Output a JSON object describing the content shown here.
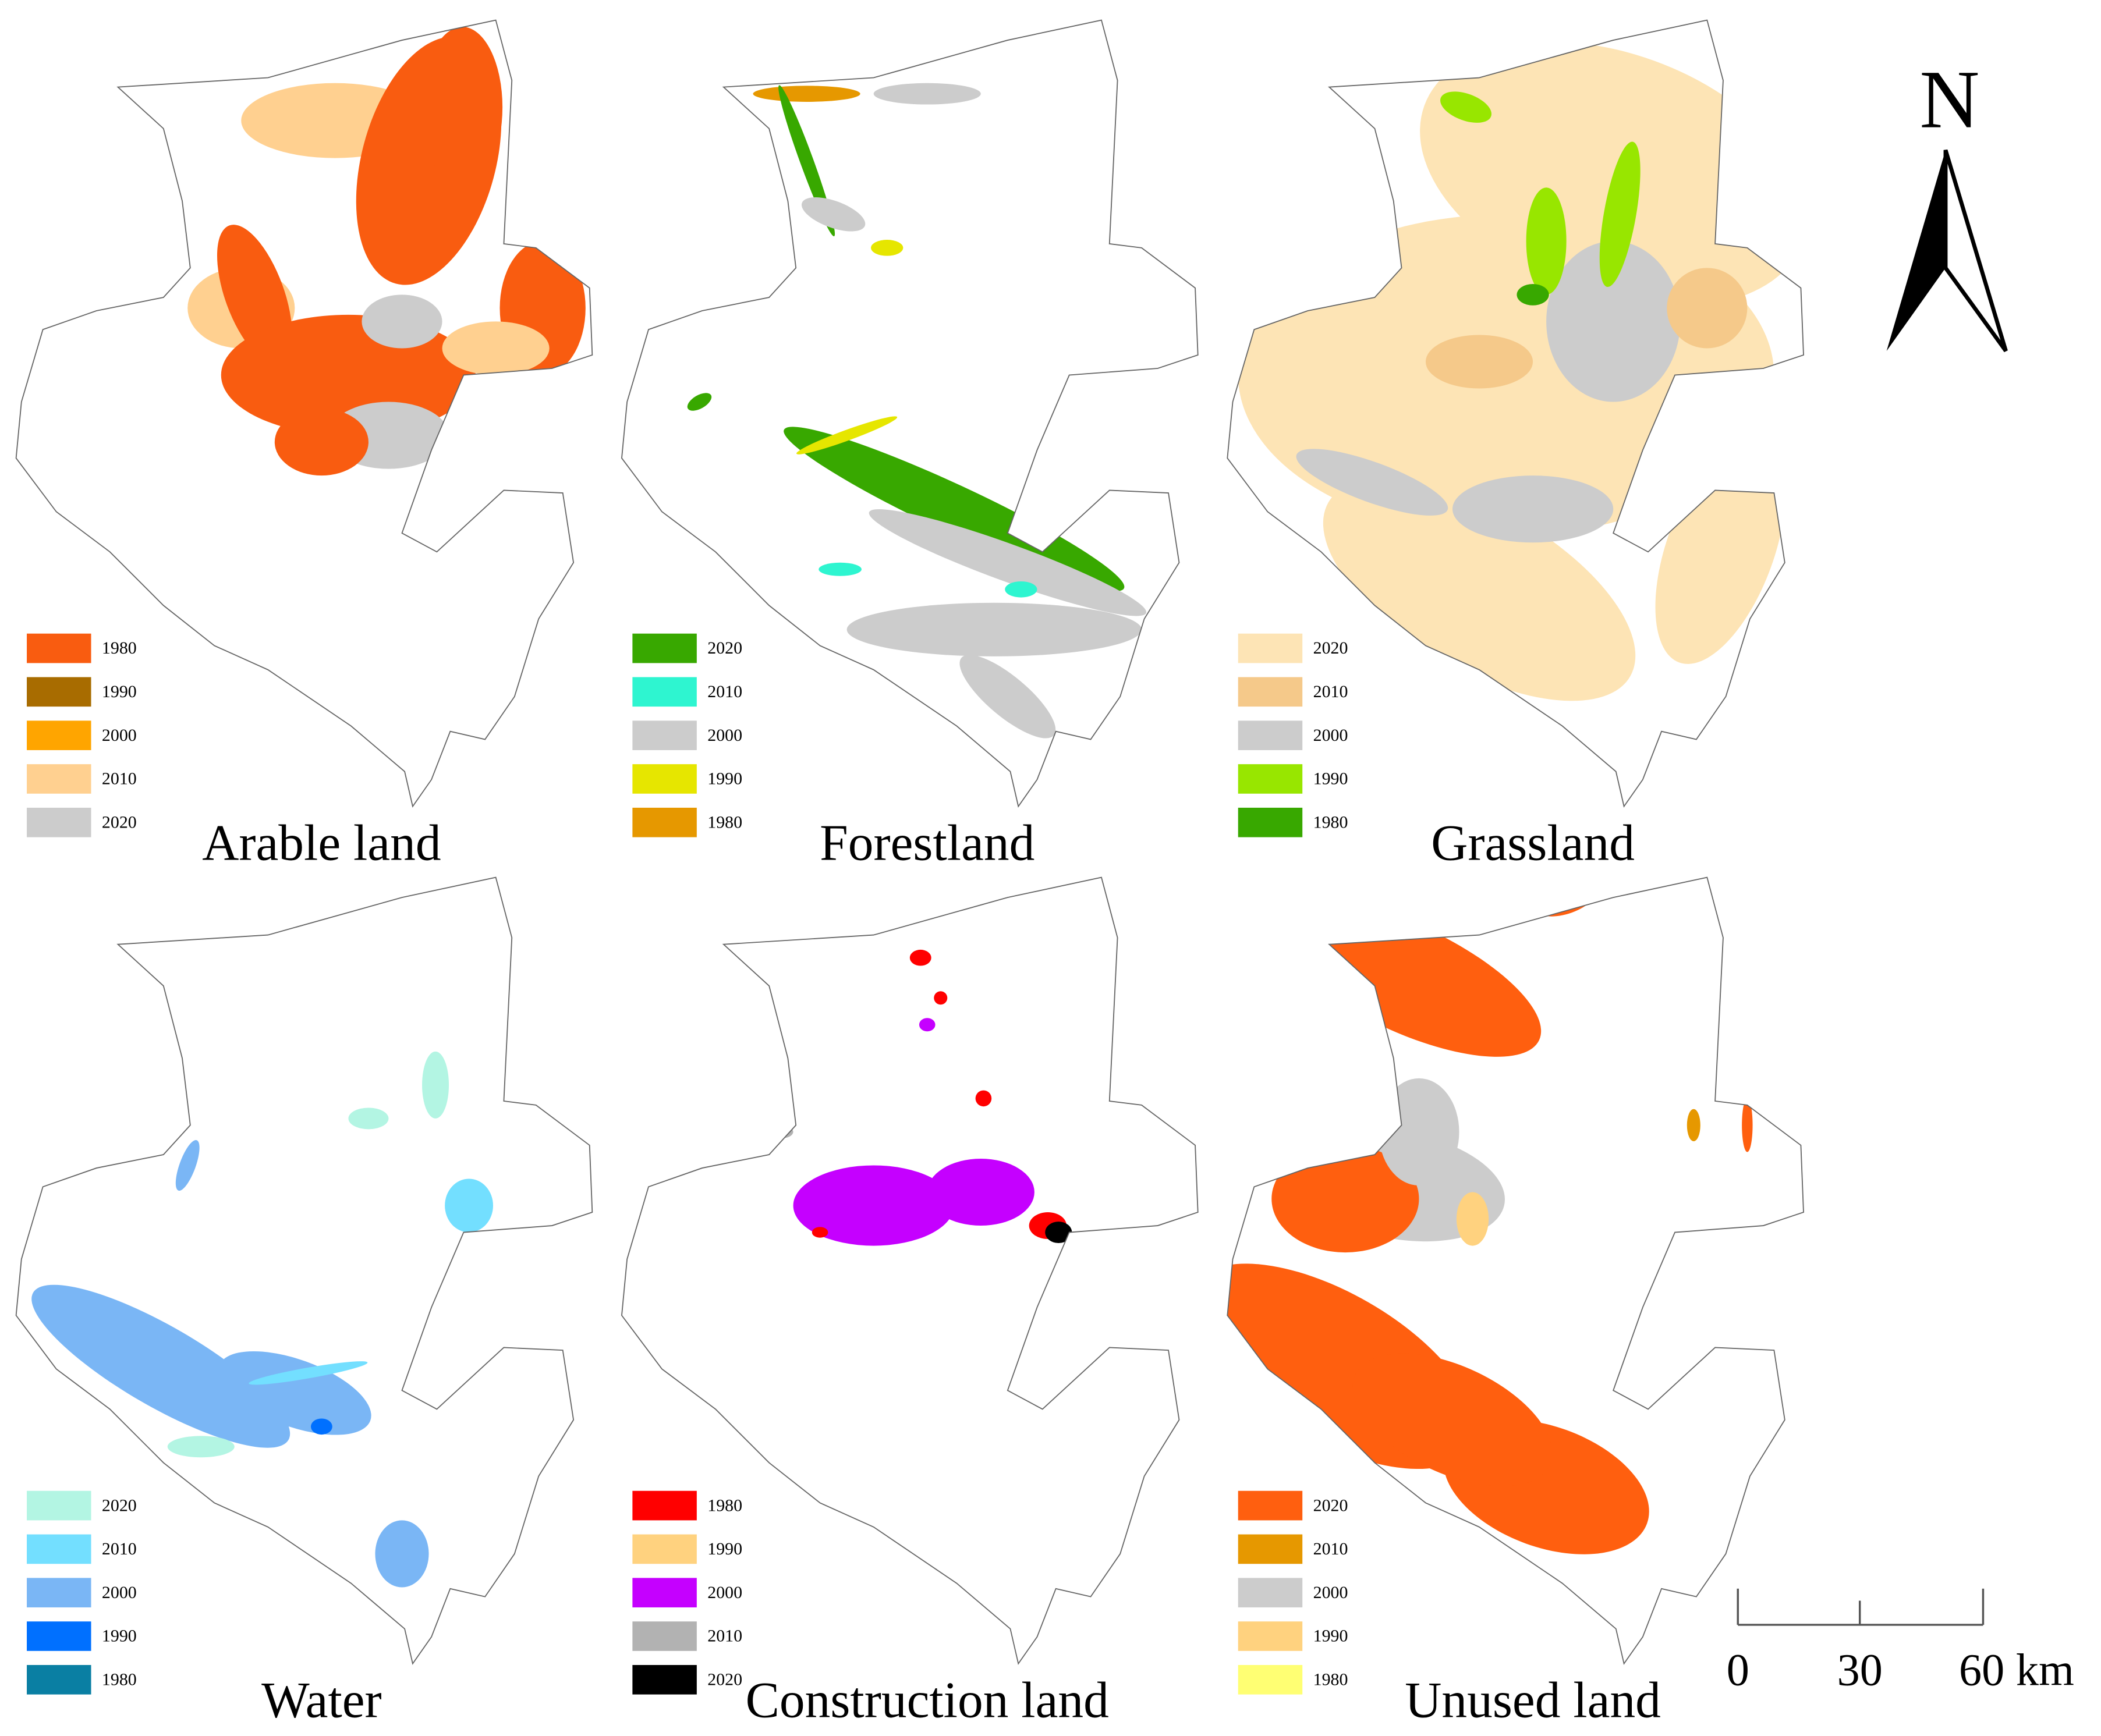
{
  "panels": [
    {
      "title": "Arable land",
      "legend": [
        {
          "label": "1980",
          "color": "#f95c10"
        },
        {
          "label": "1990",
          "color": "#a86c00"
        },
        {
          "label": "2000",
          "color": "#ffa500"
        },
        {
          "label": "2010",
          "color": "#ffd090"
        },
        {
          "label": "2020",
          "color": "#cccccc"
        }
      ]
    },
    {
      "title": "Forestland",
      "legend": [
        {
          "label": "2020",
          "color": "#38a800"
        },
        {
          "label": "2010",
          "color": "#2ef5d0"
        },
        {
          "label": "2000",
          "color": "#cccccc"
        },
        {
          "label": "1990",
          "color": "#e6e600"
        },
        {
          "label": "1980",
          "color": "#e69800"
        }
      ]
    },
    {
      "title": "Grassland",
      "legend": [
        {
          "label": "2020",
          "color": "#fde4b5"
        },
        {
          "label": "2010",
          "color": "#f5c98a"
        },
        {
          "label": "2000",
          "color": "#cccccc"
        },
        {
          "label": "1990",
          "color": "#98e600"
        },
        {
          "label": "1980",
          "color": "#38a800"
        }
      ]
    },
    {
      "title": "Water",
      "legend": [
        {
          "label": "2020",
          "color": "#b3f5e3"
        },
        {
          "label": "2010",
          "color": "#73dfff"
        },
        {
          "label": "2000",
          "color": "#7ab6f5"
        },
        {
          "label": "1990",
          "color": "#0070ff"
        },
        {
          "label": "1980",
          "color": "#0a7fa3"
        }
      ]
    },
    {
      "title": "Construction land",
      "legend": [
        {
          "label": "1980",
          "color": "#ff0000"
        },
        {
          "label": "1990",
          "color": "#ffd27f"
        },
        {
          "label": "2000",
          "color": "#c500ff"
        },
        {
          "label": "2010",
          "color": "#b2b2b2"
        },
        {
          "label": "2020",
          "color": "#000000"
        }
      ]
    },
    {
      "title": "Unused land",
      "legend": [
        {
          "label": "2020",
          "color": "#ff5f0f"
        },
        {
          "label": "2010",
          "color": "#e69800"
        },
        {
          "label": "2000",
          "color": "#cccccc"
        },
        {
          "label": "1990",
          "color": "#ffd27f"
        },
        {
          "label": "1980",
          "color": "#ffff73"
        }
      ]
    }
  ],
  "north_arrow": "N",
  "scale_bar": [
    "0",
    "30",
    "60 km"
  ]
}
